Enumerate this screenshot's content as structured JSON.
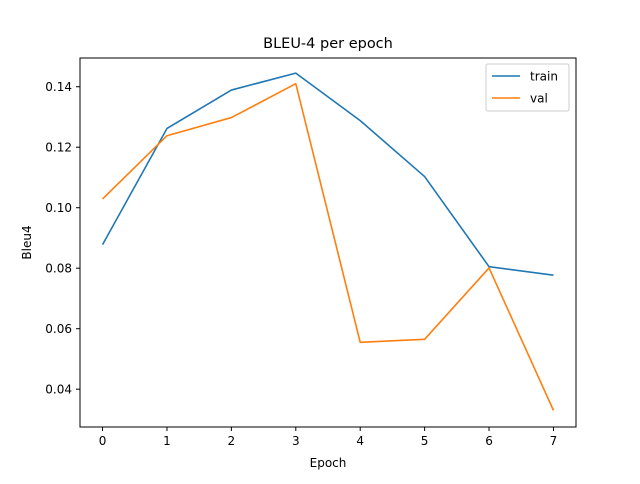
{
  "chart_data": {
    "type": "line",
    "title": "BLEU-4 per epoch",
    "xlabel": "Epoch",
    "ylabel": "Bleu4",
    "x": [
      0,
      1,
      2,
      3,
      4,
      5,
      6,
      7
    ],
    "x_ticks": [
      "0",
      "1",
      "2",
      "3",
      "4",
      "5",
      "6",
      "7"
    ],
    "y_ticks": [
      "0.04",
      "0.06",
      "0.08",
      "0.10",
      "0.12",
      "0.14"
    ],
    "y_tick_values": [
      0.04,
      0.06,
      0.08,
      0.1,
      0.12,
      0.14
    ],
    "xlim": [
      -0.35,
      7.35
    ],
    "ylim": [
      0.0275,
      0.1495
    ],
    "grid": false,
    "legend_position": "top-right",
    "series": [
      {
        "name": "train",
        "color": "#1f77b4",
        "values": [
          0.0878,
          0.1262,
          0.1389,
          0.1445,
          0.1288,
          0.1103,
          0.0805,
          0.0777
        ]
      },
      {
        "name": "val",
        "color": "#ff7f0e",
        "values": [
          0.1029,
          0.1238,
          0.1298,
          0.141,
          0.0555,
          0.0565,
          0.0801,
          0.033
        ]
      }
    ]
  }
}
